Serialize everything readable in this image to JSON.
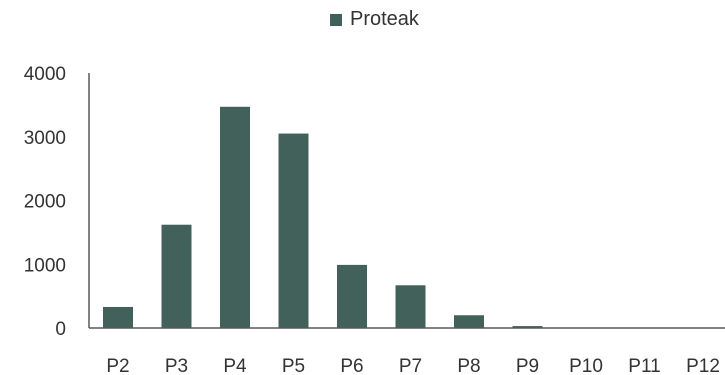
{
  "colors": {
    "bar": "#43615b",
    "axis": "#595959"
  },
  "chart_data": {
    "type": "bar",
    "title": "",
    "xlabel": "",
    "ylabel": "",
    "categories": [
      "P2",
      "P3",
      "P4",
      "P5",
      "P6",
      "P7",
      "P8",
      "P9",
      "P10",
      "P11",
      "P12"
    ],
    "series": [
      {
        "name": "Proteak",
        "values": [
          330,
          1620,
          3470,
          3050,
          990,
          670,
          200,
          30,
          5,
          5,
          5
        ]
      }
    ],
    "ylim": [
      0,
      4000
    ],
    "yticks": [
      0,
      1000,
      2000,
      3000,
      4000
    ],
    "grid": false,
    "legend": "top-center"
  }
}
